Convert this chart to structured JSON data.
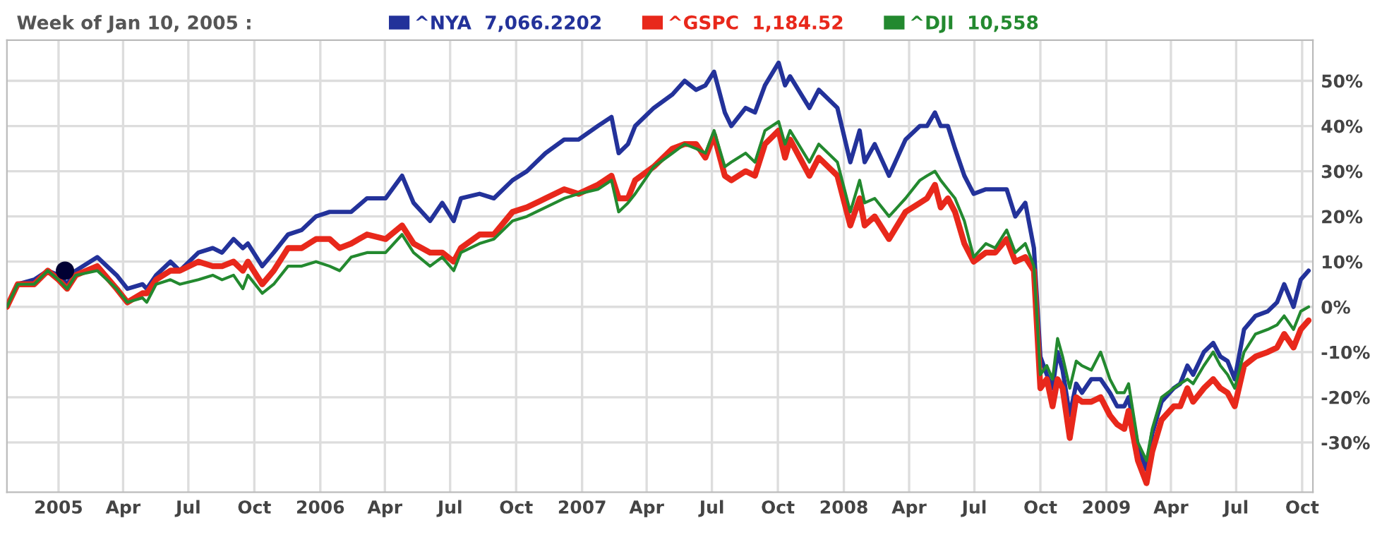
{
  "chart_data": {
    "type": "line",
    "title": "Week of Jan 10, 2005 :",
    "x": [
      "2004-10-21",
      "2004-11-05",
      "2004-11-28",
      "2004-12-17",
      "2005-01-01",
      "2005-01-13",
      "2005-01-25",
      "2005-02-24",
      "2005-03-23",
      "2005-04-07",
      "2005-04-28",
      "2005-05-04",
      "2005-05-17",
      "2005-06-06",
      "2005-06-19",
      "2005-07-15",
      "2005-08-04",
      "2005-08-17",
      "2005-09-02",
      "2005-09-15",
      "2005-09-22",
      "2005-10-12",
      "2005-10-28",
      "2005-11-17",
      "2005-12-06",
      "2005-12-26",
      "2006-01-14",
      "2006-01-28",
      "2006-02-13",
      "2006-03-07",
      "2006-04-02",
      "2006-04-25",
      "2006-05-11",
      "2006-06-03",
      "2006-06-20",
      "2006-07-06",
      "2006-07-16",
      "2006-08-11",
      "2006-08-31",
      "2006-09-26",
      "2006-10-16",
      "2006-11-11",
      "2006-12-07",
      "2006-12-27",
      "2007-01-23",
      "2007-02-11",
      "2007-02-21",
      "2007-03-06",
      "2007-03-16",
      "2007-04-11",
      "2007-05-07",
      "2007-05-24",
      "2007-06-09",
      "2007-06-22",
      "2007-07-04",
      "2007-07-19",
      "2007-07-28",
      "2007-08-17",
      "2007-08-30",
      "2007-09-13",
      "2007-10-02",
      "2007-10-11",
      "2007-10-18",
      "2007-11-14",
      "2007-11-27",
      "2007-12-23",
      "2008-01-10",
      "2008-01-23",
      "2008-01-30",
      "2008-02-13",
      "2008-03-04",
      "2008-03-27",
      "2008-04-16",
      "2008-04-26",
      "2008-05-07",
      "2008-05-15",
      "2008-05-25",
      "2008-06-04",
      "2008-06-17",
      "2008-06-30",
      "2008-07-17",
      "2008-07-30",
      "2008-08-15",
      "2008-08-27",
      "2008-09-10",
      "2008-09-22",
      "2008-10-01",
      "2008-10-10",
      "2008-10-18",
      "2008-10-25",
      "2008-11-01",
      "2008-11-11",
      "2008-11-20",
      "2008-11-28",
      "2008-12-11",
      "2008-12-24",
      "2009-01-06",
      "2009-01-16",
      "2009-01-26",
      "2009-02-01",
      "2009-02-14",
      "2009-02-26",
      "2009-03-06",
      "2009-03-19",
      "2009-04-05",
      "2009-04-14",
      "2009-04-24",
      "2009-05-02",
      "2009-05-17",
      "2009-05-30",
      "2009-06-09",
      "2009-06-19",
      "2009-06-29",
      "2009-07-12",
      "2009-07-28",
      "2009-08-14",
      "2009-08-27",
      "2009-09-06",
      "2009-09-19",
      "2009-09-29",
      "2009-10-10"
    ],
    "series": [
      {
        "name": "^NYA  7,066.2202",
        "color": "#23329a",
        "values": [
          0,
          5,
          6,
          8,
          7,
          5,
          8,
          11,
          7,
          4,
          5,
          4,
          7,
          10,
          8,
          12,
          13,
          12,
          15,
          13,
          14,
          9,
          12,
          16,
          17,
          20,
          21,
          21,
          21,
          24,
          24,
          29,
          23,
          19,
          23,
          19,
          24,
          25,
          24,
          28,
          30,
          34,
          37,
          37,
          40,
          42,
          34,
          36,
          40,
          44,
          47,
          50,
          48,
          49,
          52,
          43,
          40,
          44,
          43,
          49,
          54,
          49,
          51,
          44,
          48,
          44,
          32,
          39,
          32,
          36,
          29,
          37,
          40,
          40,
          43,
          40,
          40,
          35,
          29,
          25,
          26,
          26,
          26,
          20,
          23,
          13,
          -11,
          -15,
          -18,
          -10,
          -14,
          -24,
          -17,
          -19,
          -16,
          -16,
          -19,
          -22,
          -22,
          -20,
          -31,
          -36,
          -28,
          -21,
          -18,
          -17,
          -13,
          -15,
          -10,
          -8,
          -11,
          -12,
          -16,
          -5,
          -2,
          -1,
          1,
          5,
          0,
          6,
          8
        ]
      },
      {
        "name": "^GSPC  1,184.52",
        "color": "#e8281b",
        "values": [
          0,
          5,
          5,
          8,
          6,
          4,
          7,
          9,
          4,
          1,
          3,
          3,
          6,
          8,
          8,
          10,
          9,
          9,
          10,
          8,
          10,
          5,
          8,
          13,
          13,
          15,
          15,
          13,
          14,
          16,
          15,
          18,
          14,
          12,
          12,
          10,
          13,
          16,
          16,
          21,
          22,
          24,
          26,
          25,
          27,
          29,
          24,
          24,
          28,
          31,
          35,
          36,
          36,
          33,
          38,
          29,
          28,
          30,
          29,
          36,
          39,
          33,
          37,
          29,
          33,
          29,
          18,
          24,
          18,
          20,
          15,
          21,
          23,
          24,
          27,
          22,
          24,
          21,
          14,
          10,
          12,
          12,
          15,
          10,
          11,
          8,
          -18,
          -16,
          -22,
          -16,
          -18,
          -29,
          -20,
          -21,
          -21,
          -20,
          -24,
          -26,
          -27,
          -23,
          -34,
          -39,
          -32,
          -25,
          -22,
          -22,
          -18,
          -21,
          -18,
          -16,
          -18,
          -19,
          -22,
          -13,
          -11,
          -10,
          -9,
          -6,
          -9,
          -5,
          -3
        ]
      },
      {
        "name": "^DJI  10,558",
        "color": "#23892f",
        "values": [
          0,
          5,
          5,
          8,
          6,
          4,
          7,
          8,
          4,
          1,
          2,
          1,
          5,
          6,
          5,
          6,
          7,
          6,
          7,
          4,
          7,
          3,
          5,
          9,
          9,
          10,
          9,
          8,
          11,
          12,
          12,
          16,
          12,
          9,
          11,
          8,
          12,
          14,
          15,
          19,
          20,
          22,
          24,
          25,
          26,
          28,
          21,
          23,
          25,
          31,
          34,
          36,
          35,
          34,
          39,
          31,
          32,
          34,
          32,
          39,
          41,
          36,
          39,
          32,
          36,
          32,
          21,
          28,
          23,
          24,
          20,
          24,
          28,
          29,
          30,
          28,
          26,
          24,
          19,
          11,
          14,
          13,
          17,
          12,
          14,
          9,
          -15,
          -13,
          -16,
          -7,
          -11,
          -18,
          -12,
          -13,
          -14,
          -10,
          -16,
          -19,
          -19,
          -17,
          -30,
          -34,
          -27,
          -20,
          -18,
          -17,
          -16,
          -17,
          -13,
          -10,
          -13,
          -15,
          -18,
          -10,
          -6,
          -5,
          -4,
          -2,
          -5,
          -1,
          0
        ]
      },
      {
        "type": "scatter",
        "color": "#000033",
        "x": [
          "2005-01-10"
        ],
        "values": [
          8
        ],
        "marker": "circle"
      }
    ],
    "xlim": [
      "2004-10-21",
      "2009-10-16"
    ],
    "xticks": [
      {
        "value": "2005-01-01",
        "label": "2005"
      },
      {
        "value": "2005-04-01",
        "label": "Apr"
      },
      {
        "value": "2005-07-01",
        "label": "Jul"
      },
      {
        "value": "2005-10-01",
        "label": "Oct"
      },
      {
        "value": "2006-01-01",
        "label": "2006"
      },
      {
        "value": "2006-04-01",
        "label": "Apr"
      },
      {
        "value": "2006-07-01",
        "label": "Jul"
      },
      {
        "value": "2006-10-01",
        "label": "Oct"
      },
      {
        "value": "2007-01-01",
        "label": "2007"
      },
      {
        "value": "2007-04-01",
        "label": "Apr"
      },
      {
        "value": "2007-07-01",
        "label": "Jul"
      },
      {
        "value": "2007-10-01",
        "label": "Oct"
      },
      {
        "value": "2008-01-01",
        "label": "2008"
      },
      {
        "value": "2008-04-01",
        "label": "Apr"
      },
      {
        "value": "2008-07-01",
        "label": "Jul"
      },
      {
        "value": "2008-10-01",
        "label": "Oct"
      },
      {
        "value": "2009-01-01",
        "label": "2009"
      },
      {
        "value": "2009-04-01",
        "label": "Apr"
      },
      {
        "value": "2009-07-01",
        "label": "Jul"
      },
      {
        "value": "2009-10-01",
        "label": "Oct"
      }
    ],
    "ylim": [
      -41,
      59
    ],
    "yticks": [
      {
        "value": -30,
        "label": "-30%"
      },
      {
        "value": -20,
        "label": "-20%"
      },
      {
        "value": -10,
        "label": "-10%"
      },
      {
        "value": 0,
        "label": "0%"
      },
      {
        "value": 10,
        "label": "10%"
      },
      {
        "value": 20,
        "label": "20%"
      },
      {
        "value": 30,
        "label": "30%"
      },
      {
        "value": 40,
        "label": "40%"
      },
      {
        "value": 50,
        "label": "50%"
      }
    ],
    "grid": true,
    "legend": "top",
    "marker": "none",
    "line_style": "solid"
  }
}
